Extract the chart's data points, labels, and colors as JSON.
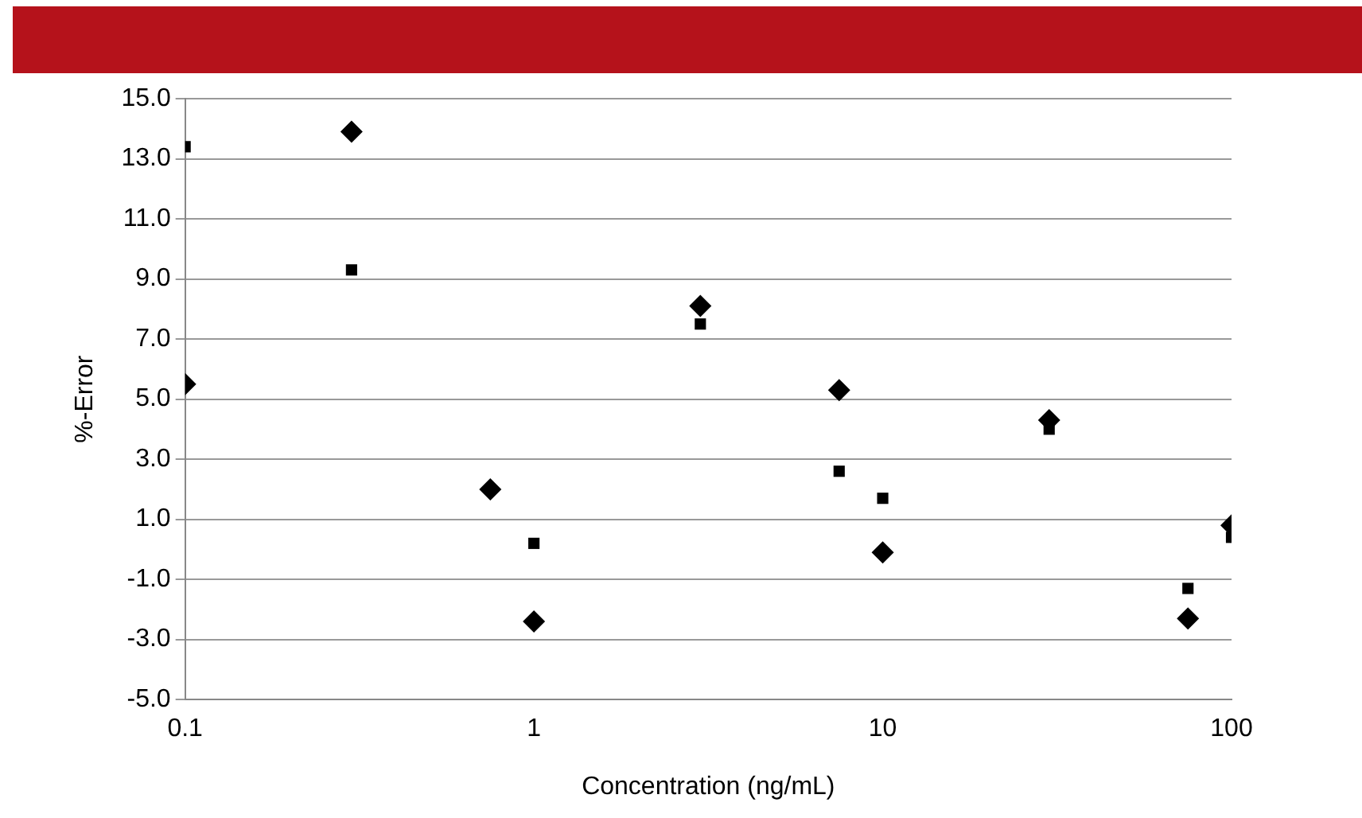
{
  "chart_data": {
    "type": "scatter",
    "xlabel": "Concentration (ng/mL)",
    "ylabel": "%-Error",
    "log": "x",
    "grid": "y",
    "legend": false,
    "xlim": [
      0.1,
      100
    ],
    "xticks": [
      0.1,
      1,
      10,
      100
    ],
    "ylim": [
      -5,
      15
    ],
    "yticks": [
      {
        "value": -5,
        "label": "-5.0"
      },
      {
        "value": -3,
        "label": "-3.0"
      },
      {
        "value": -1,
        "label": "-1.0"
      },
      {
        "value": 1,
        "label": "1.0"
      },
      {
        "value": 3,
        "label": "3.0"
      },
      {
        "value": 5,
        "label": "5.0"
      },
      {
        "value": 7,
        "label": "7.0"
      },
      {
        "value": 9,
        "label": "9.0"
      },
      {
        "value": 11,
        "label": "11.0"
      },
      {
        "value": 13,
        "label": "13.0"
      },
      {
        "value": 15,
        "label": "15.0"
      }
    ],
    "x": [
      0.1,
      0.3,
      0.75,
      1,
      3,
      7.5,
      10,
      30,
      75,
      100
    ],
    "series": [
      {
        "color": "#000000",
        "marker": "diamond",
        "values": [
          5.5,
          13.9,
          2.0,
          -2.4,
          8.1,
          5.3,
          -0.1,
          4.3,
          -2.3,
          0.8
        ]
      },
      {
        "color": "#000000",
        "marker": "square",
        "values": [
          13.4,
          9.3,
          null,
          0.2,
          7.5,
          2.6,
          1.7,
          4.0,
          -1.3,
          0.4
        ]
      }
    ]
  }
}
